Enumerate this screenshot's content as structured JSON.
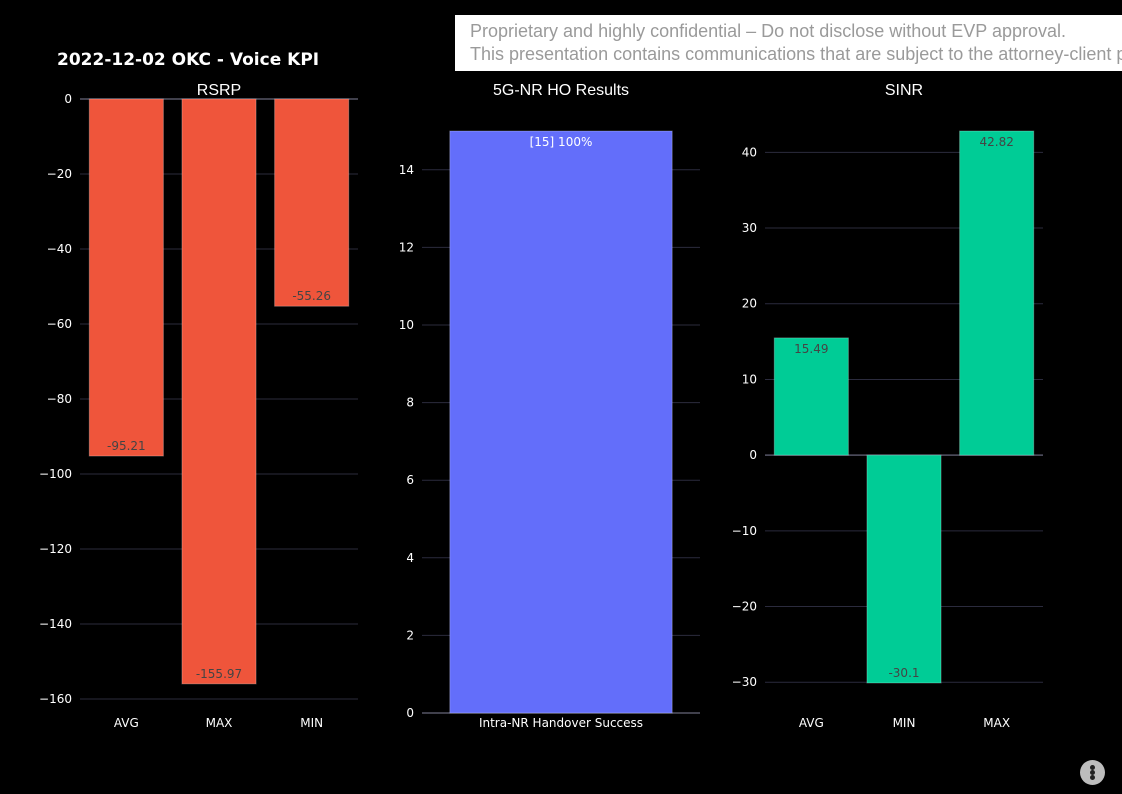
{
  "header": {
    "title": "2022-12-02 OKC - Voice KPI"
  },
  "notice": {
    "line1": "Proprietary and highly confidential – Do not disclose without EVP approval.",
    "line2": "This presentation contains communications that are subject to the attorney-client privilege"
  },
  "colors": {
    "background": "#000000",
    "grid": "#2b2b3d",
    "rsrp": "#ef553b",
    "handover": "#636efa",
    "sinr": "#00cc96",
    "text": "#ffffff",
    "bar_label_dark": "#444444"
  },
  "toolbar": {
    "menu_icon": "vertical-dots-icon"
  },
  "chart_data": [
    {
      "type": "bar",
      "title": "RSRP",
      "categories": [
        "AVG",
        "MAX",
        "MIN"
      ],
      "values": [
        -95.21,
        -155.97,
        -55.26
      ],
      "text_labels": [
        "-95.21",
        "-155.97",
        "-55.26"
      ],
      "ylim": [
        -160,
        0
      ],
      "yticks": [
        0,
        -20,
        -40,
        -60,
        -80,
        -100,
        -120,
        -140,
        -160
      ],
      "ytick_labels": [
        "0",
        "−20",
        "−40",
        "−60",
        "−80",
        "−100",
        "−120",
        "−140",
        "−160"
      ],
      "color": "#ef553b",
      "grid": true
    },
    {
      "type": "bar",
      "title": "5G-NR HO Results",
      "categories": [
        "Intra-NR Handover Success"
      ],
      "values": [
        15
      ],
      "text_labels": [
        "[15]  100%"
      ],
      "ylim": [
        0,
        15
      ],
      "yticks": [
        0,
        2,
        4,
        6,
        8,
        10,
        12,
        14
      ],
      "ytick_labels": [
        "0",
        "2",
        "4",
        "6",
        "8",
        "10",
        "12",
        "14"
      ],
      "color": "#636efa",
      "grid": true
    },
    {
      "type": "bar",
      "title": "SINR",
      "categories": [
        "AVG",
        "MIN",
        "MAX"
      ],
      "values": [
        15.49,
        -30.1,
        42.82
      ],
      "text_labels": [
        "15.49",
        "-30.1",
        "42.82"
      ],
      "ylim": [
        -30.1,
        42.82
      ],
      "yticks": [
        40,
        30,
        20,
        10,
        0,
        -10,
        -20,
        -30
      ],
      "ytick_labels": [
        "40",
        "30",
        "20",
        "10",
        "0",
        "−10",
        "−20",
        "−30"
      ],
      "color": "#00cc96",
      "grid": true
    }
  ]
}
